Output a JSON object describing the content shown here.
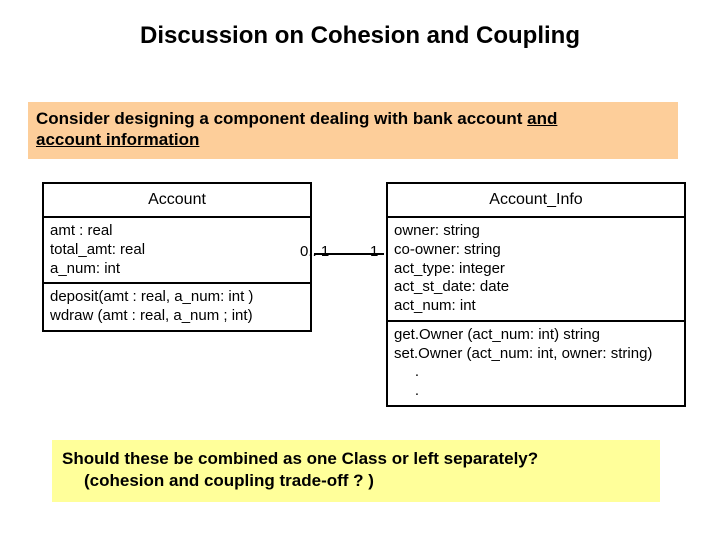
{
  "title": "Discussion on Cohesion and Coupling",
  "prompt": {
    "line1_a": "Consider designing a component dealing with bank account ",
    "line1_b": "and",
    "line2": "account information",
    "box_bg": "#fdce9a"
  },
  "account": {
    "name": "Account",
    "attrs": "amt : real\ntotal_amt: real\na_num: int",
    "ops": "deposit(amt : real, a_num: int )\nwdraw (amt : real, a_num ; int)"
  },
  "info": {
    "name": "Account_Info",
    "attrs": "owner: string\nco-owner: string\nact_type: integer\nact_st_date: date\nact_num: int",
    "ops": "get.Owner (act_num: int) string\nset.Owner (act_num: int, owner: string)\n     .\n     ."
  },
  "assoc": {
    "left_mult": "0.. 1",
    "right_mult": "1"
  },
  "question": {
    "line1": "Should these be combined as one Class or left separately?",
    "line2": "(cohesion and coupling trade-off ? )",
    "box_bg": "#ffff9a"
  },
  "colors": {
    "border": "#000000",
    "text": "#000000",
    "page_bg": "#ffffff"
  }
}
